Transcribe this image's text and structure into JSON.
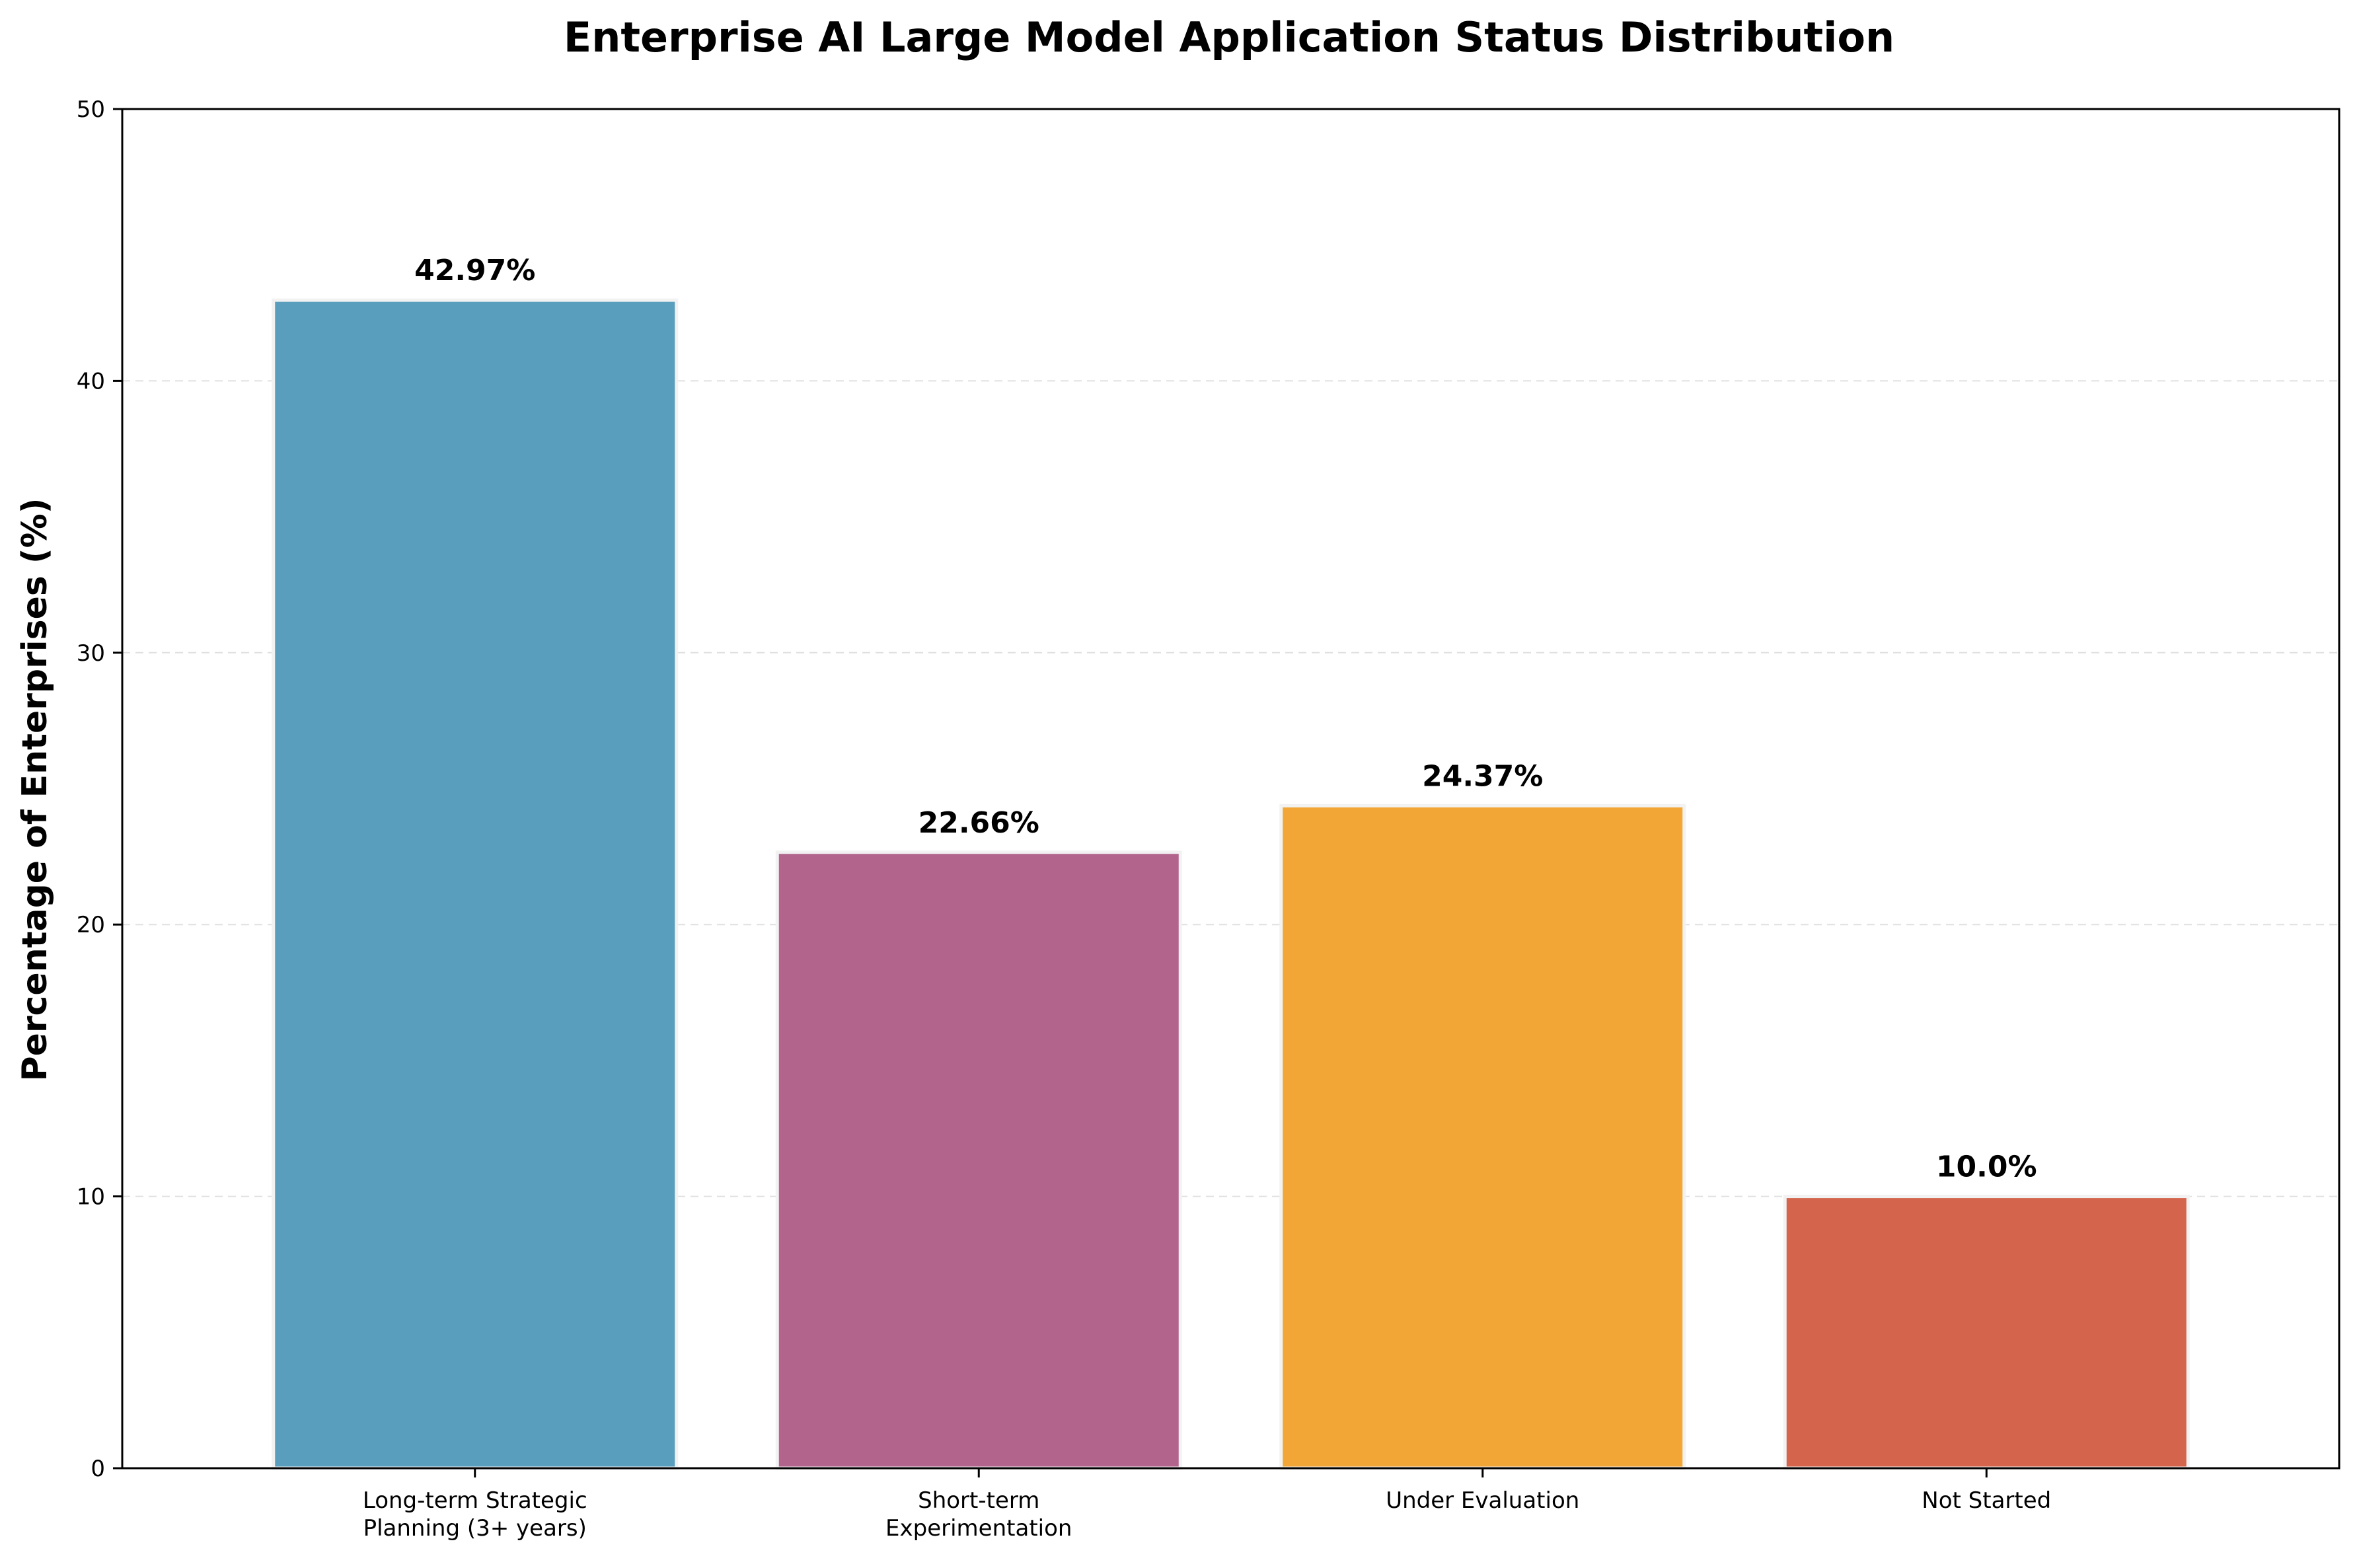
{
  "chart_data": {
    "type": "bar",
    "title": "Enterprise AI Large Model Application Status Distribution",
    "xlabel": "",
    "ylabel": "Percentage of Enterprises (%)",
    "ylim": [
      0,
      50
    ],
    "yticks": [
      0,
      10,
      20,
      30,
      40,
      50
    ],
    "grid": true,
    "categories": [
      [
        "Long-term Strategic",
        "Planning (3+ years)"
      ],
      [
        "Short-term",
        "Experimentation"
      ],
      [
        "Under Evaluation"
      ],
      [
        "Not Started"
      ]
    ],
    "values": [
      42.97,
      22.66,
      24.37,
      10.0
    ],
    "value_labels": [
      "42.97%",
      "22.66%",
      "24.37%",
      "10.0%"
    ],
    "colors": [
      "#5a9ebe",
      "#b2648c",
      "#f2a636",
      "#d4654c"
    ]
  }
}
